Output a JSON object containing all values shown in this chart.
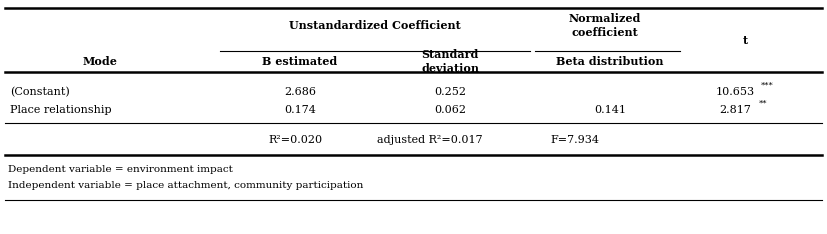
{
  "col_headers_row1_mode": "Mode",
  "col_headers_row1_uc": "Unstandardized Coefficient",
  "col_headers_row1_norm": "Normalized\ncoefficient",
  "col_headers_row1_t": "t",
  "col_headers_row2_b": "B estimated",
  "col_headers_row2_sd": "Standard\ndeviation",
  "col_headers_row2_beta": "Beta distribution",
  "rows": [
    [
      "(Constant)",
      "2.686",
      "0.252",
      "",
      "10.653",
      "***"
    ],
    [
      "Place relationship",
      "0.174",
      "0.062",
      "0.141",
      "2.817",
      "**"
    ]
  ],
  "stats": [
    "R²=0.020",
    "adjusted R²=0.017",
    "F=7.934"
  ],
  "footnotes": [
    "Dependent variable = environment impact",
    "Independent variable = place attachment, community participation"
  ],
  "bg_color": "#ffffff",
  "text_color": "#000000",
  "fs": 8.0
}
